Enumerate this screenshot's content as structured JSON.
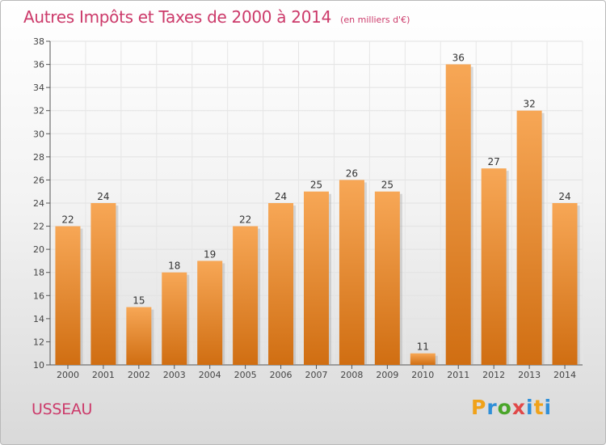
{
  "header": {
    "title": "Autres Impôts et Taxes de 2000 à 2014",
    "unit": "(en milliers d'€)"
  },
  "footer": {
    "place": "USSEAU",
    "logo": "Proxiti"
  },
  "colors": {
    "bar_light": "#f7a756",
    "bar_dark": "#d06e12",
    "title": "#cc3a6a"
  },
  "chart_data": {
    "type": "bar",
    "title": "Autres Impôts et Taxes de 2000 à 2014",
    "categories": [
      "2000",
      "2001",
      "2002",
      "2003",
      "2004",
      "2005",
      "2006",
      "2007",
      "2008",
      "2009",
      "2010",
      "2011",
      "2012",
      "2013",
      "2014"
    ],
    "values": [
      22,
      24,
      15,
      18,
      19,
      22,
      24,
      25,
      26,
      25,
      11,
      36,
      27,
      32,
      24
    ],
    "xlabel": "",
    "ylabel": "",
    "ylim": [
      10,
      38
    ],
    "yticks": [
      10,
      12,
      14,
      16,
      18,
      20,
      22,
      24,
      26,
      28,
      30,
      32,
      34,
      36,
      38
    ],
    "grid": true,
    "data_labels": true
  }
}
